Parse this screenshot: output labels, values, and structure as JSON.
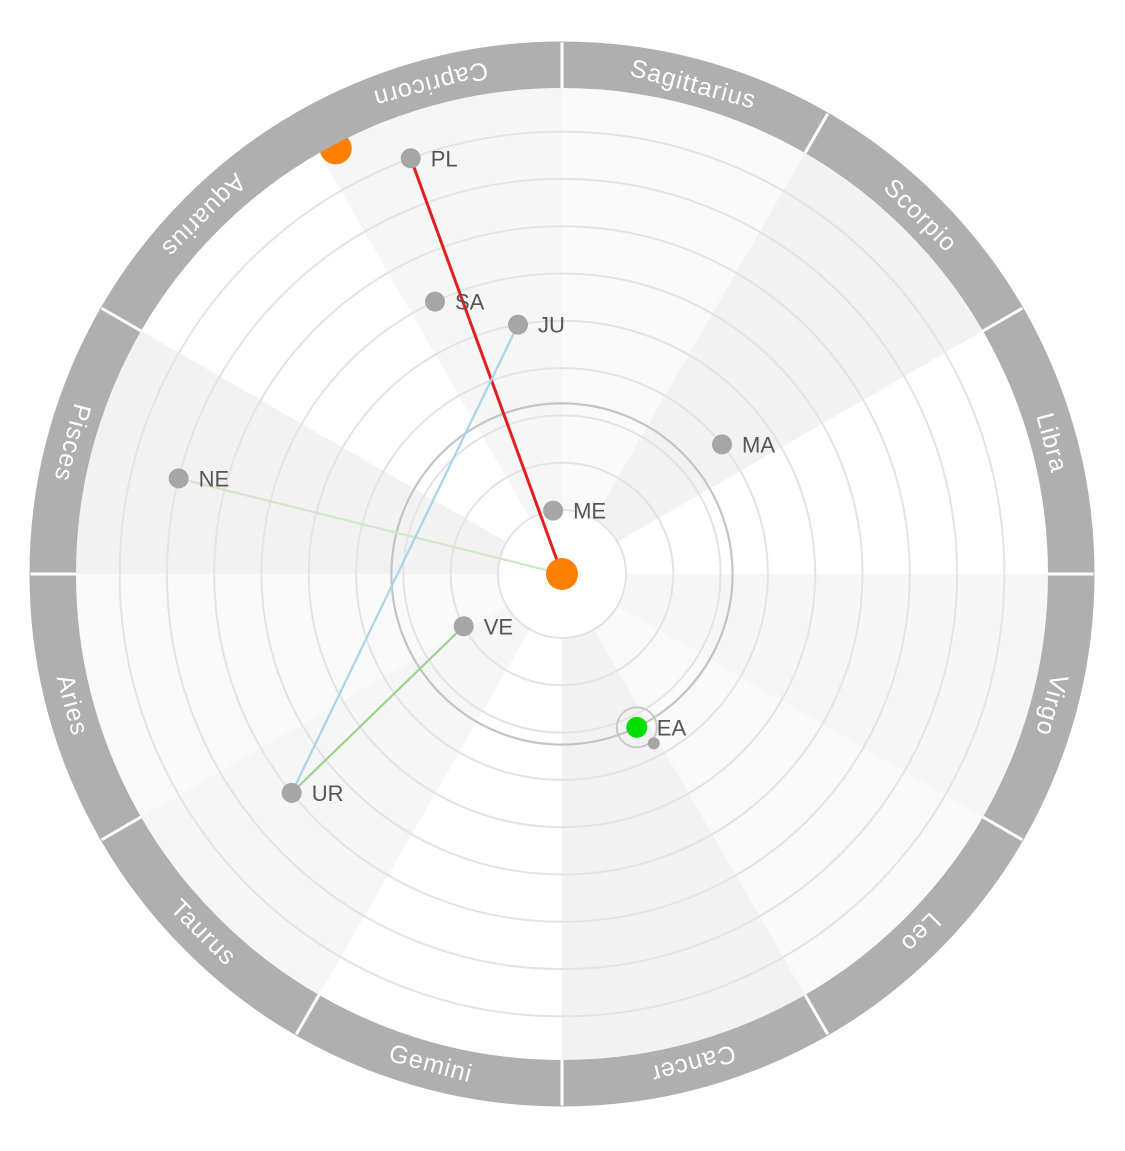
{
  "signs": [
    "Sagittarius",
    "Scorpio",
    "Libra",
    "Virgo",
    "Leo",
    "Cancer",
    "Gemini",
    "Taurus",
    "Aries",
    "Pisces",
    "Aquarius",
    "Capricorn"
  ],
  "sun": {
    "color": "#ff8000"
  },
  "planets": [
    {
      "id": "me",
      "label": "ME",
      "orbit": 1,
      "angle_deg": 98,
      "color": "#a6a6a6"
    },
    {
      "id": "ve",
      "label": "VE",
      "orbit": 2,
      "angle_deg": 208,
      "color": "#a6a6a6"
    },
    {
      "id": "ea",
      "label": "EA",
      "orbit": 3,
      "angle_deg": 296,
      "color": "#00dd00",
      "moon": true
    },
    {
      "id": "ma",
      "label": "MA",
      "orbit": 4,
      "angle_deg": 39,
      "color": "#a6a6a6"
    },
    {
      "id": "ju",
      "label": "JU",
      "orbit": 5,
      "angle_deg": 100,
      "color": "#a6a6a6"
    },
    {
      "id": "sa",
      "label": "SA",
      "orbit": 6,
      "angle_deg": 115,
      "color": "#a6a6a6"
    },
    {
      "id": "ur",
      "label": "UR",
      "orbit": 7,
      "angle_deg": 219,
      "color": "#a6a6a6"
    },
    {
      "id": "ne",
      "label": "NE",
      "orbit": 8,
      "angle_deg": 166,
      "color": "#a6a6a6"
    },
    {
      "id": "pl",
      "label": "PL",
      "orbit": 9,
      "angle_deg": 110,
      "color": "#a6a6a6"
    }
  ],
  "links": [
    {
      "from": "sun",
      "to": "pl",
      "color": "#e02020"
    },
    {
      "from": "sun",
      "to": "ne",
      "color": "#cfe8c6"
    },
    {
      "from": "ve",
      "to": "ur",
      "color": "#9ad48a"
    },
    {
      "from": "ju",
      "to": "ur",
      "color": "#a9d4ea"
    }
  ],
  "zodiac_marker": {
    "angle_deg": 118,
    "color": "#ff8000"
  }
}
